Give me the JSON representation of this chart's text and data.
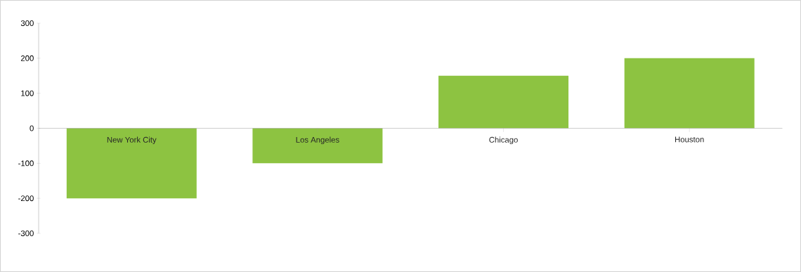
{
  "chart_data": {
    "type": "bar",
    "categories": [
      "New York City",
      "Los Angeles",
      "Chicago",
      "Houston"
    ],
    "values": [
      -200,
      -100,
      150,
      200
    ],
    "color": "#8dc341",
    "ylim": [
      -300,
      300
    ],
    "yticks": [
      -300,
      -200,
      -100,
      0,
      100,
      200,
      300
    ],
    "grid": false
  }
}
